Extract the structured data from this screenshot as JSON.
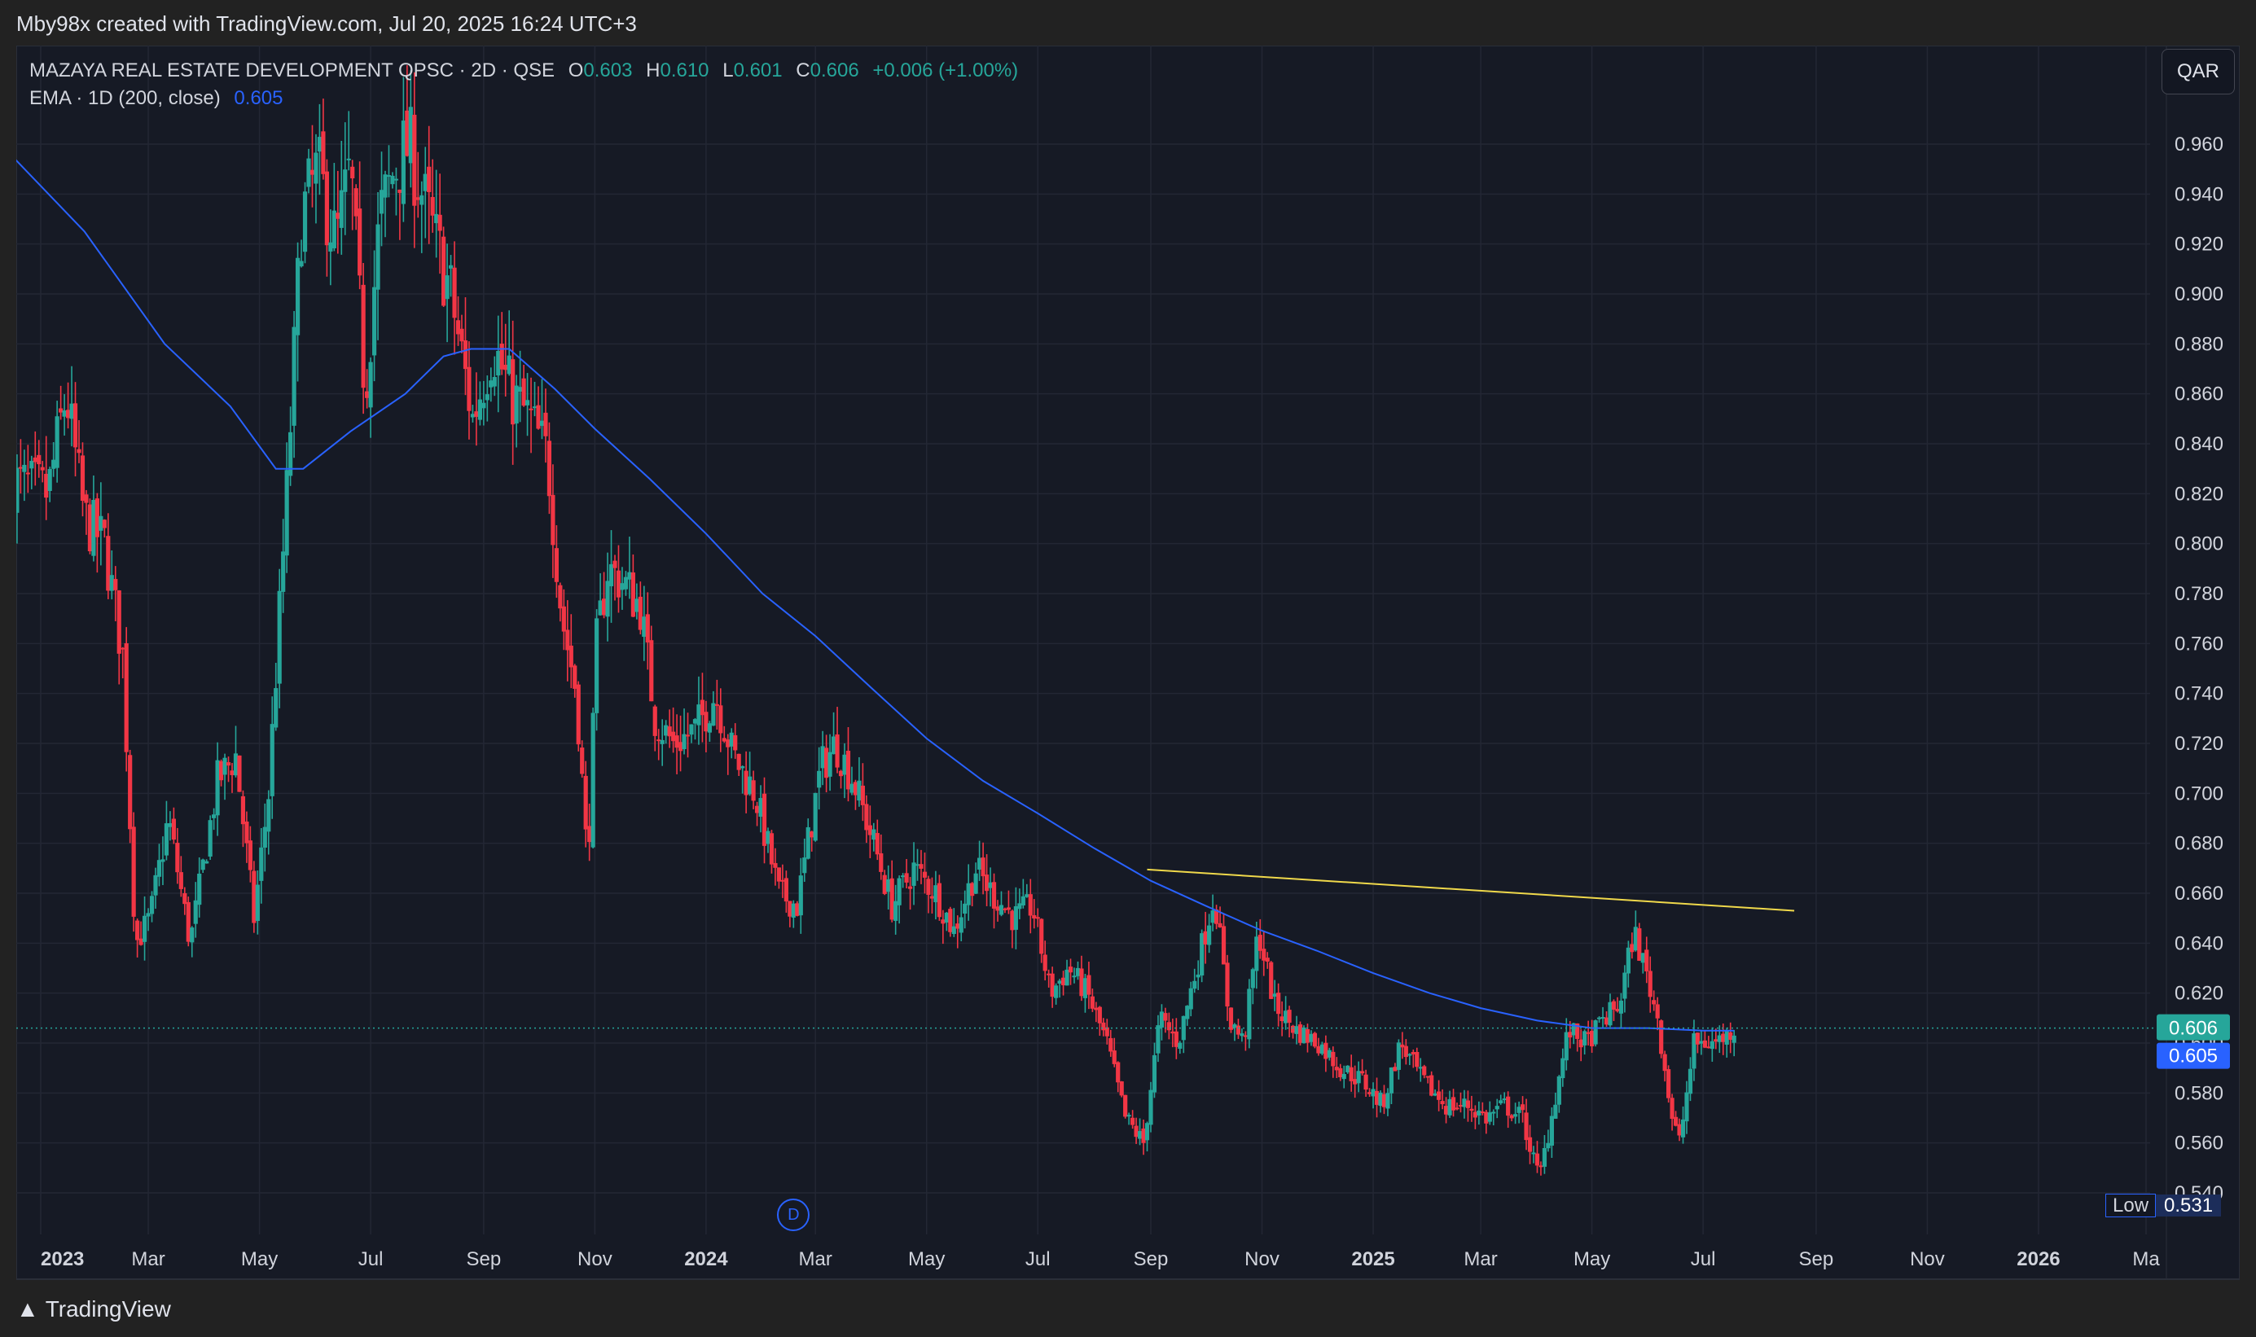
{
  "credit": "Mby98x created with TradingView.com, Jul 20, 2025 16:24 UTC+3",
  "legend": {
    "symbol": "MAZAYA REAL ESTATE DEVELOPMENT QPSC · 2D · QSE",
    "o_label": "O",
    "o": "0.603",
    "h_label": "H",
    "h": "0.610",
    "l_label": "L",
    "l": "0.601",
    "c_label": "C",
    "c": "0.606",
    "change": "+0.006 (+1.00%)",
    "ema_label": "EMA · 1D (200, close)",
    "ema_value": "0.605"
  },
  "currency_button": "QAR",
  "low_marker": {
    "label": "Low",
    "value": "0.531"
  },
  "event_marker": "D",
  "brand": "TradingView",
  "colors": {
    "up": "#26a69a",
    "down": "#f23645",
    "ema": "#2962ff",
    "trendline": "#f0d94b",
    "background": "#161a25"
  },
  "chart_data": {
    "type": "candlestick",
    "timeframe": "2D",
    "ylim": [
      0.535,
      0.97
    ],
    "y_ticks": [
      "0.540",
      "0.560",
      "0.580",
      "0.600",
      "0.620",
      "0.640",
      "0.660",
      "0.680",
      "0.700",
      "0.720",
      "0.740",
      "0.760",
      "0.780",
      "0.800",
      "0.820",
      "0.840",
      "0.860",
      "0.880",
      "0.900",
      "0.920",
      "0.940",
      "0.960"
    ],
    "x_ticks": [
      {
        "label": "2023",
        "date": "2023-01-01",
        "bold": true
      },
      {
        "label": "Mar",
        "date": "2023-03-01"
      },
      {
        "label": "May",
        "date": "2023-05-01"
      },
      {
        "label": "Jul",
        "date": "2023-07-01"
      },
      {
        "label": "Sep",
        "date": "2023-09-01"
      },
      {
        "label": "Nov",
        "date": "2023-11-01"
      },
      {
        "label": "2024",
        "date": "2024-01-01",
        "bold": true
      },
      {
        "label": "Mar",
        "date": "2024-03-01"
      },
      {
        "label": "May",
        "date": "2024-05-01"
      },
      {
        "label": "Jul",
        "date": "2024-07-01"
      },
      {
        "label": "Sep",
        "date": "2024-09-01"
      },
      {
        "label": "Nov",
        "date": "2024-11-01"
      },
      {
        "label": "2025",
        "date": "2025-01-01",
        "bold": true
      },
      {
        "label": "Mar",
        "date": "2025-03-01"
      },
      {
        "label": "May",
        "date": "2025-05-01"
      },
      {
        "label": "Jul",
        "date": "2025-07-01"
      },
      {
        "label": "Sep",
        "date": "2025-09-01"
      },
      {
        "label": "Nov",
        "date": "2025-11-01"
      },
      {
        "label": "2026",
        "date": "2026-01-01",
        "bold": true
      },
      {
        "label": "Ma",
        "date": "2026-03-01"
      }
    ],
    "price_path": [
      [
        "2022-12-17",
        0.825
      ],
      [
        "2023-01-05",
        0.82
      ],
      [
        "2023-01-15",
        0.86
      ],
      [
        "2023-01-25",
        0.81
      ],
      [
        "2023-02-05",
        0.8
      ],
      [
        "2023-02-15",
        0.755
      ],
      [
        "2023-02-22",
        0.64
      ],
      [
        "2023-03-02",
        0.65
      ],
      [
        "2023-03-12",
        0.69
      ],
      [
        "2023-03-24",
        0.64
      ],
      [
        "2023-04-08",
        0.705
      ],
      [
        "2023-04-18",
        0.715
      ],
      [
        "2023-04-28",
        0.65
      ],
      [
        "2023-05-06",
        0.7
      ],
      [
        "2023-05-16",
        0.82
      ],
      [
        "2023-05-24",
        0.93
      ],
      [
        "2023-06-02",
        0.95
      ],
      [
        "2023-06-12",
        0.92
      ],
      [
        "2023-06-20",
        0.95
      ],
      [
        "2023-06-28",
        0.86
      ],
      [
        "2023-07-06",
        0.93
      ],
      [
        "2023-07-14",
        0.95
      ],
      [
        "2023-07-22",
        0.96
      ],
      [
        "2023-08-02",
        0.93
      ],
      [
        "2023-08-14",
        0.9
      ],
      [
        "2023-08-26",
        0.85
      ],
      [
        "2023-09-06",
        0.88
      ],
      [
        "2023-09-16",
        0.86
      ],
      [
        "2023-09-26",
        0.85
      ],
      [
        "2023-10-06",
        0.835
      ],
      [
        "2023-10-14",
        0.77
      ],
      [
        "2023-10-22",
        0.74
      ],
      [
        "2023-10-28",
        0.67
      ],
      [
        "2023-11-02",
        0.76
      ],
      [
        "2023-11-08",
        0.79
      ],
      [
        "2023-11-16",
        0.785
      ],
      [
        "2023-11-26",
        0.775
      ],
      [
        "2023-12-04",
        0.73
      ],
      [
        "2023-12-14",
        0.72
      ],
      [
        "2023-12-26",
        0.725
      ],
      [
        "2024-01-06",
        0.74
      ],
      [
        "2024-01-16",
        0.715
      ],
      [
        "2024-01-28",
        0.7
      ],
      [
        "2024-02-10",
        0.66
      ],
      [
        "2024-02-20",
        0.655
      ],
      [
        "2024-03-04",
        0.71
      ],
      [
        "2024-03-12",
        0.72
      ],
      [
        "2024-03-22",
        0.705
      ],
      [
        "2024-04-02",
        0.68
      ],
      [
        "2024-04-12",
        0.655
      ],
      [
        "2024-04-24",
        0.67
      ],
      [
        "2024-05-06",
        0.66
      ],
      [
        "2024-05-16",
        0.645
      ],
      [
        "2024-05-28",
        0.67
      ],
      [
        "2024-06-06",
        0.66
      ],
      [
        "2024-06-18",
        0.65
      ],
      [
        "2024-06-28",
        0.655
      ],
      [
        "2024-07-08",
        0.62
      ],
      [
        "2024-07-18",
        0.63
      ],
      [
        "2024-07-28",
        0.62
      ],
      [
        "2024-08-08",
        0.6
      ],
      [
        "2024-08-18",
        0.57
      ],
      [
        "2024-08-28",
        0.56
      ],
      [
        "2024-09-06",
        0.61
      ],
      [
        "2024-09-16",
        0.6
      ],
      [
        "2024-09-26",
        0.63
      ],
      [
        "2024-10-06",
        0.66
      ],
      [
        "2024-10-14",
        0.61
      ],
      [
        "2024-10-22",
        0.6
      ],
      [
        "2024-10-30",
        0.645
      ],
      [
        "2024-11-08",
        0.615
      ],
      [
        "2024-11-20",
        0.605
      ],
      [
        "2024-12-02",
        0.6
      ],
      [
        "2024-12-14",
        0.59
      ],
      [
        "2024-12-26",
        0.585
      ],
      [
        "2025-01-06",
        0.575
      ],
      [
        "2025-01-16",
        0.6
      ],
      [
        "2025-01-28",
        0.585
      ],
      [
        "2025-02-10",
        0.575
      ],
      [
        "2025-02-22",
        0.575
      ],
      [
        "2025-03-04",
        0.57
      ],
      [
        "2025-03-14",
        0.575
      ],
      [
        "2025-03-24",
        0.57
      ],
      [
        "2025-04-02",
        0.545
      ],
      [
        "2025-04-10",
        0.575
      ],
      [
        "2025-04-18",
        0.605
      ],
      [
        "2025-04-28",
        0.6
      ],
      [
        "2025-05-08",
        0.61
      ],
      [
        "2025-05-16",
        0.615
      ],
      [
        "2025-05-24",
        0.645
      ],
      [
        "2025-05-30",
        0.63
      ],
      [
        "2025-06-06",
        0.61
      ],
      [
        "2025-06-14",
        0.57
      ],
      [
        "2025-06-18",
        0.56
      ],
      [
        "2025-06-26",
        0.6
      ],
      [
        "2025-07-06",
        0.6
      ],
      [
        "2025-07-14",
        0.603
      ],
      [
        "2025-07-18",
        0.606
      ]
    ],
    "ema_200": [
      [
        "2022-12-10",
        0.96
      ],
      [
        "2023-01-25",
        0.925
      ],
      [
        "2023-03-10",
        0.88
      ],
      [
        "2023-04-15",
        0.855
      ],
      [
        "2023-05-10",
        0.83
      ],
      [
        "2023-05-25",
        0.83
      ],
      [
        "2023-06-20",
        0.845
      ],
      [
        "2023-07-20",
        0.86
      ],
      [
        "2023-08-10",
        0.875
      ],
      [
        "2023-08-25",
        0.878
      ],
      [
        "2023-09-15",
        0.878
      ],
      [
        "2023-10-10",
        0.862
      ],
      [
        "2023-11-01",
        0.846
      ],
      [
        "2023-12-01",
        0.826
      ],
      [
        "2024-01-01",
        0.804
      ],
      [
        "2024-02-01",
        0.78
      ],
      [
        "2024-03-01",
        0.763
      ],
      [
        "2024-04-01",
        0.742
      ],
      [
        "2024-05-01",
        0.722
      ],
      [
        "2024-06-01",
        0.705
      ],
      [
        "2024-07-01",
        0.692
      ],
      [
        "2024-08-01",
        0.678
      ],
      [
        "2024-09-01",
        0.665
      ],
      [
        "2024-10-01",
        0.655
      ],
      [
        "2024-11-01",
        0.645
      ],
      [
        "2024-12-01",
        0.637
      ],
      [
        "2025-01-01",
        0.628
      ],
      [
        "2025-02-01",
        0.62
      ],
      [
        "2025-03-01",
        0.614
      ],
      [
        "2025-04-01",
        0.609
      ],
      [
        "2025-05-01",
        0.606
      ],
      [
        "2025-06-01",
        0.606
      ],
      [
        "2025-07-01",
        0.605
      ],
      [
        "2025-07-18",
        0.605
      ]
    ],
    "trendline": {
      "from": [
        "2024-08-30",
        0.6695
      ],
      "to": [
        "2025-08-20",
        0.653
      ]
    },
    "last_price": "0.606",
    "last_price_value": 0.606,
    "ema_last": "0.605",
    "ema_last_value": 0.605,
    "low": 0.531,
    "event_marker_date": "2024-02-18"
  }
}
